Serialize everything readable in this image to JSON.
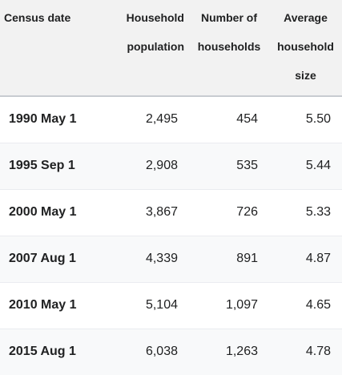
{
  "table": {
    "headers": {
      "col1": "Census date",
      "col2": "Household population",
      "col3": "Number of households",
      "col4": "Average household size"
    },
    "rows": [
      {
        "date": "1990 May 1",
        "population": "2,495",
        "households": "454",
        "avg_size": "5.50"
      },
      {
        "date": "1995 Sep 1",
        "population": "2,908",
        "households": "535",
        "avg_size": "5.44"
      },
      {
        "date": "2000 May 1",
        "population": "3,867",
        "households": "726",
        "avg_size": "5.33"
      },
      {
        "date": "2007 Aug 1",
        "population": "4,339",
        "households": "891",
        "avg_size": "4.87"
      },
      {
        "date": "2010 May 1",
        "population": "5,104",
        "households": "1,097",
        "avg_size": "4.65"
      },
      {
        "date": "2015 Aug 1",
        "population": "6,038",
        "households": "1,263",
        "avg_size": "4.78"
      }
    ]
  }
}
